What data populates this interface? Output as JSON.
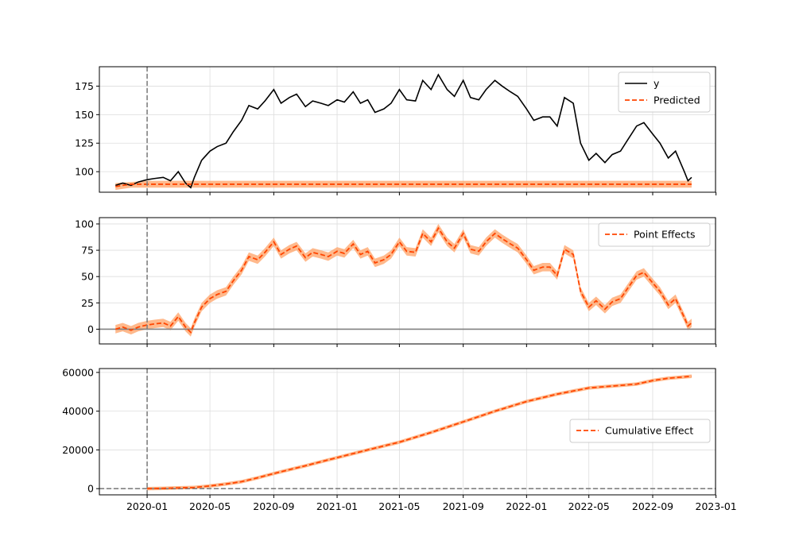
{
  "chart_data": [
    {
      "type": "line",
      "title": "",
      "xlabel": "",
      "ylabel": "",
      "x_range": [
        "2019-10-01",
        "2022-12-31"
      ],
      "ylim": [
        82,
        192
      ],
      "yticks": [
        100,
        125,
        150,
        175
      ],
      "intervention_date": "2020-01-01",
      "legend_position": "top-right",
      "grid": true,
      "series": [
        {
          "name": "y",
          "color": "#000000",
          "style": "solid",
          "points": [
            [
              "2019-11-01",
              88
            ],
            [
              "2019-11-15",
              90
            ],
            [
              "2019-12-01",
              88
            ],
            [
              "2019-12-15",
              91
            ],
            [
              "2020-01-01",
              93
            ],
            [
              "2020-01-15",
              94
            ],
            [
              "2020-02-01",
              95
            ],
            [
              "2020-02-15",
              92
            ],
            [
              "2020-03-01",
              100
            ],
            [
              "2020-03-15",
              90
            ],
            [
              "2020-03-25",
              86
            ],
            [
              "2020-04-01",
              95
            ],
            [
              "2020-04-15",
              110
            ],
            [
              "2020-05-01",
              118
            ],
            [
              "2020-05-15",
              122
            ],
            [
              "2020-06-01",
              125
            ],
            [
              "2020-06-15",
              135
            ],
            [
              "2020-07-01",
              145
            ],
            [
              "2020-07-15",
              158
            ],
            [
              "2020-08-01",
              155
            ],
            [
              "2020-08-15",
              162
            ],
            [
              "2020-09-01",
              172
            ],
            [
              "2020-09-15",
              160
            ],
            [
              "2020-10-01",
              165
            ],
            [
              "2020-10-15",
              168
            ],
            [
              "2020-11-01",
              157
            ],
            [
              "2020-11-15",
              162
            ],
            [
              "2020-12-01",
              160
            ],
            [
              "2020-12-15",
              158
            ],
            [
              "2021-01-01",
              163
            ],
            [
              "2021-01-15",
              161
            ],
            [
              "2021-02-01",
              170
            ],
            [
              "2021-02-15",
              160
            ],
            [
              "2021-03-01",
              163
            ],
            [
              "2021-03-15",
              152
            ],
            [
              "2021-04-01",
              155
            ],
            [
              "2021-04-15",
              160
            ],
            [
              "2021-05-01",
              172
            ],
            [
              "2021-05-15",
              163
            ],
            [
              "2021-06-01",
              162
            ],
            [
              "2021-06-15",
              180
            ],
            [
              "2021-07-01",
              172
            ],
            [
              "2021-07-15",
              185
            ],
            [
              "2021-08-01",
              172
            ],
            [
              "2021-08-15",
              166
            ],
            [
              "2021-09-01",
              180
            ],
            [
              "2021-09-15",
              165
            ],
            [
              "2021-10-01",
              163
            ],
            [
              "2021-10-15",
              172
            ],
            [
              "2021-11-01",
              180
            ],
            [
              "2021-11-15",
              175
            ],
            [
              "2021-12-01",
              170
            ],
            [
              "2021-12-15",
              166
            ],
            [
              "2022-01-01",
              155
            ],
            [
              "2022-01-15",
              145
            ],
            [
              "2022-02-01",
              148
            ],
            [
              "2022-02-15",
              148
            ],
            [
              "2022-03-01",
              140
            ],
            [
              "2022-03-15",
              165
            ],
            [
              "2022-04-01",
              160
            ],
            [
              "2022-04-15",
              125
            ],
            [
              "2022-05-01",
              110
            ],
            [
              "2022-05-15",
              116
            ],
            [
              "2022-06-01",
              108
            ],
            [
              "2022-06-15",
              115
            ],
            [
              "2022-07-01",
              118
            ],
            [
              "2022-07-15",
              128
            ],
            [
              "2022-08-01",
              140
            ],
            [
              "2022-08-15",
              143
            ],
            [
              "2022-09-01",
              133
            ],
            [
              "2022-09-15",
              125
            ],
            [
              "2022-10-01",
              112
            ],
            [
              "2022-10-15",
              118
            ],
            [
              "2022-11-01",
              100
            ],
            [
              "2022-11-08",
              92
            ],
            [
              "2022-11-15",
              95
            ]
          ]
        },
        {
          "name": "Predicted",
          "color": "#ff4500",
          "style": "dashed",
          "points": [
            [
              "2019-11-01",
              87
            ],
            [
              "2019-11-15",
              88
            ],
            [
              "2019-12-01",
              89
            ],
            [
              "2020-01-01",
              89
            ],
            [
              "2022-11-15",
              89
            ]
          ],
          "band": [
            [
              "2019-11-01",
              84,
              90
            ],
            [
              "2019-12-01",
              86,
              91
            ],
            [
              "2020-01-01",
              86,
              92
            ],
            [
              "2022-11-15",
              86,
              92
            ]
          ]
        }
      ]
    },
    {
      "type": "line",
      "title": "",
      "xlabel": "",
      "ylabel": "",
      "x_range": [
        "2019-10-01",
        "2022-12-31"
      ],
      "ylim": [
        -14,
        106
      ],
      "yticks": [
        0,
        25,
        50,
        75,
        100
      ],
      "intervention_date": "2020-01-01",
      "zero_line": true,
      "legend_position": "top-right",
      "grid": true,
      "series": [
        {
          "name": "Point Effects",
          "color": "#ff4500",
          "style": "dashed",
          "band_halfwidth": 4,
          "points": [
            [
              "2019-11-01",
              0
            ],
            [
              "2019-11-15",
              2
            ],
            [
              "2019-12-01",
              -1
            ],
            [
              "2019-12-15",
              2
            ],
            [
              "2020-01-01",
              4
            ],
            [
              "2020-01-15",
              5
            ],
            [
              "2020-02-01",
              6
            ],
            [
              "2020-02-15",
              3
            ],
            [
              "2020-03-01",
              12
            ],
            [
              "2020-03-15",
              2
            ],
            [
              "2020-03-25",
              -3
            ],
            [
              "2020-04-01",
              6
            ],
            [
              "2020-04-15",
              21
            ],
            [
              "2020-05-01",
              29
            ],
            [
              "2020-05-15",
              33
            ],
            [
              "2020-06-01",
              36
            ],
            [
              "2020-06-15",
              46
            ],
            [
              "2020-07-01",
              56
            ],
            [
              "2020-07-15",
              69
            ],
            [
              "2020-08-01",
              66
            ],
            [
              "2020-08-15",
              73
            ],
            [
              "2020-09-01",
              83
            ],
            [
              "2020-09-15",
              71
            ],
            [
              "2020-10-01",
              76
            ],
            [
              "2020-10-15",
              79
            ],
            [
              "2020-11-01",
              68
            ],
            [
              "2020-11-15",
              73
            ],
            [
              "2020-12-01",
              71
            ],
            [
              "2020-12-15",
              69
            ],
            [
              "2021-01-01",
              74
            ],
            [
              "2021-01-15",
              72
            ],
            [
              "2021-02-01",
              81
            ],
            [
              "2021-02-15",
              71
            ],
            [
              "2021-03-01",
              74
            ],
            [
              "2021-03-15",
              63
            ],
            [
              "2021-04-01",
              66
            ],
            [
              "2021-04-15",
              71
            ],
            [
              "2021-05-01",
              83
            ],
            [
              "2021-05-15",
              74
            ],
            [
              "2021-06-01",
              73
            ],
            [
              "2021-06-15",
              91
            ],
            [
              "2021-07-01",
              83
            ],
            [
              "2021-07-15",
              96
            ],
            [
              "2021-08-01",
              83
            ],
            [
              "2021-08-15",
              77
            ],
            [
              "2021-09-01",
              91
            ],
            [
              "2021-09-15",
              76
            ],
            [
              "2021-10-01",
              74
            ],
            [
              "2021-10-15",
              83
            ],
            [
              "2021-11-01",
              91
            ],
            [
              "2021-11-15",
              86
            ],
            [
              "2021-12-01",
              81
            ],
            [
              "2021-12-15",
              77
            ],
            [
              "2022-01-01",
              66
            ],
            [
              "2022-01-15",
              56
            ],
            [
              "2022-02-01",
              59
            ],
            [
              "2022-02-15",
              59
            ],
            [
              "2022-03-01",
              51
            ],
            [
              "2022-03-15",
              76
            ],
            [
              "2022-04-01",
              71
            ],
            [
              "2022-04-15",
              36
            ],
            [
              "2022-05-01",
              21
            ],
            [
              "2022-05-15",
              27
            ],
            [
              "2022-06-01",
              19
            ],
            [
              "2022-06-15",
              26
            ],
            [
              "2022-07-01",
              29
            ],
            [
              "2022-07-15",
              39
            ],
            [
              "2022-08-01",
              51
            ],
            [
              "2022-08-15",
              54
            ],
            [
              "2022-09-01",
              44
            ],
            [
              "2022-09-15",
              36
            ],
            [
              "2022-10-01",
              23
            ],
            [
              "2022-10-15",
              29
            ],
            [
              "2022-11-01",
              11
            ],
            [
              "2022-11-08",
              3
            ],
            [
              "2022-11-15",
              6
            ]
          ]
        }
      ]
    },
    {
      "type": "line",
      "title": "",
      "xlabel": "",
      "ylabel": "",
      "x_range": [
        "2019-10-01",
        "2022-12-31"
      ],
      "ylim": [
        -3200,
        62000
      ],
      "yticks": [
        0,
        20000,
        40000,
        60000
      ],
      "xticks": [
        "2020-01",
        "2020-05",
        "2020-09",
        "2021-01",
        "2021-05",
        "2021-09",
        "2022-01",
        "2022-05",
        "2022-09",
        "2023-01"
      ],
      "intervention_date": "2020-01-01",
      "zero_line": true,
      "legend_position": "center-right",
      "grid": true,
      "series": [
        {
          "name": "Cumulative Effect",
          "color": "#ff4500",
          "style": "dashed",
          "band_halfwidth": 900,
          "points": [
            [
              "2020-01-01",
              0
            ],
            [
              "2020-02-01",
              150
            ],
            [
              "2020-03-01",
              400
            ],
            [
              "2020-04-01",
              600
            ],
            [
              "2020-05-01",
              1400
            ],
            [
              "2020-06-01",
              2400
            ],
            [
              "2020-07-01",
              3600
            ],
            [
              "2020-08-01",
              5600
            ],
            [
              "2020-09-01",
              7800
            ],
            [
              "2020-10-01",
              9800
            ],
            [
              "2020-11-01",
              11800
            ],
            [
              "2020-12-01",
              13900
            ],
            [
              "2021-01-01",
              16000
            ],
            [
              "2021-03-01",
              20000
            ],
            [
              "2021-05-01",
              24000
            ],
            [
              "2021-07-01",
              29000
            ],
            [
              "2021-09-01",
              34500
            ],
            [
              "2021-11-01",
              40000
            ],
            [
              "2022-01-01",
              45000
            ],
            [
              "2022-03-01",
              48800
            ],
            [
              "2022-05-01",
              52000
            ],
            [
              "2022-07-01",
              53300
            ],
            [
              "2022-08-01",
              54000
            ],
            [
              "2022-09-01",
              55800
            ],
            [
              "2022-10-01",
              57000
            ],
            [
              "2022-11-15",
              58000
            ]
          ]
        }
      ]
    }
  ]
}
